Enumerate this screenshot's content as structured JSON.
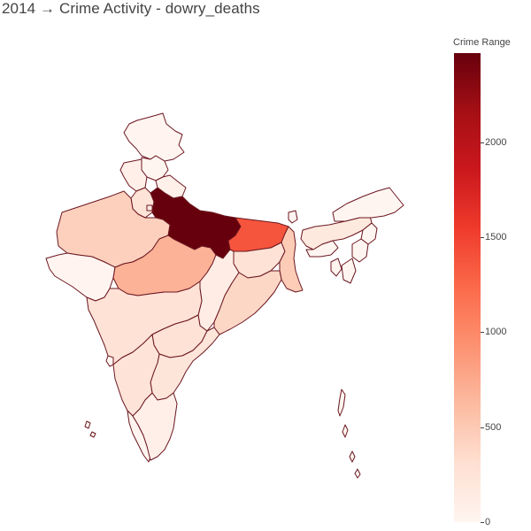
{
  "title": "2014 → Crime Activity - dowry_deaths",
  "chart_data": {
    "type": "choropleth",
    "title": "2014 → Crime Activity - dowry_deaths",
    "colorbar": {
      "title": "Crime Range",
      "range": [
        0,
        2469
      ],
      "ticks": [
        0,
        500,
        1000,
        1500,
        2000
      ],
      "tick_labels": [
        "0",
        "500",
        "1000",
        "1500",
        "2000"
      ],
      "colorscale": "Reds",
      "colors": [
        "#fff5f0",
        "#fee0d2",
        "#fcbba1",
        "#fc9272",
        "#fb6a4a",
        "#ef3b2c",
        "#cb181d",
        "#a50f15",
        "#67000d"
      ]
    }
  },
  "regions": [
    {
      "name": "Jammu and Kashmir",
      "value": 13
    },
    {
      "name": "Himachal Pradesh",
      "value": 4
    },
    {
      "name": "Punjab",
      "value": 83
    },
    {
      "name": "Haryana",
      "value": 258
    },
    {
      "name": "Delhi",
      "value": 137
    },
    {
      "name": "Uttarakhand",
      "value": 76
    },
    {
      "name": "Rajasthan",
      "value": 442
    },
    {
      "name": "Uttar Pradesh",
      "value": 2469
    },
    {
      "name": "Bihar",
      "value": 1373
    },
    {
      "name": "Gujarat",
      "value": 13
    },
    {
      "name": "Madhya Pradesh",
      "value": 685
    },
    {
      "name": "Jharkhand",
      "value": 282
    },
    {
      "name": "West Bengal",
      "value": 477
    },
    {
      "name": "Chhattisgarh",
      "value": 112
    },
    {
      "name": "Odisha",
      "value": 387
    },
    {
      "name": "Maharashtra",
      "value": 272
    },
    {
      "name": "Telangana",
      "value": 280
    },
    {
      "name": "Andhra Pradesh",
      "value": 228
    },
    {
      "name": "Karnataka",
      "value": 243
    },
    {
      "name": "Goa",
      "value": 2
    },
    {
      "name": "Kerala",
      "value": 10
    },
    {
      "name": "Tamil Nadu",
      "value": 84
    },
    {
      "name": "Sikkim",
      "value": 0
    },
    {
      "name": "Assam",
      "value": 183
    },
    {
      "name": "Arunachal Pradesh",
      "value": 1
    },
    {
      "name": "Nagaland",
      "value": 0
    },
    {
      "name": "Manipur",
      "value": 0
    },
    {
      "name": "Meghalaya",
      "value": 4
    },
    {
      "name": "Tripura",
      "value": 35
    },
    {
      "name": "Mizoram",
      "value": 0
    }
  ]
}
